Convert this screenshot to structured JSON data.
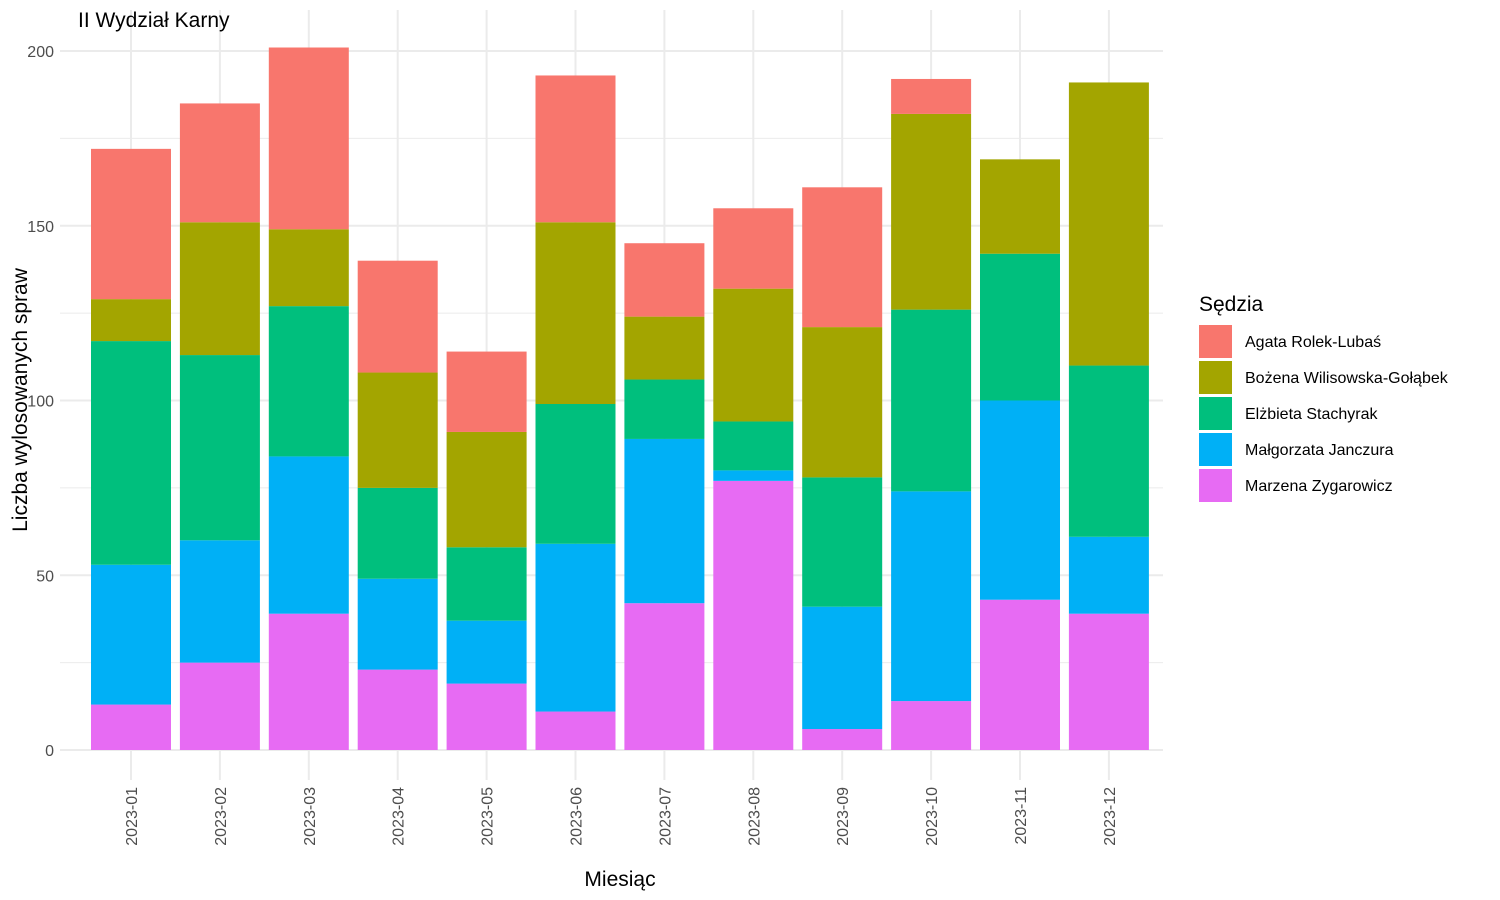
{
  "chart_data": {
    "type": "bar",
    "stacked": true,
    "title": "II Wydział Karny",
    "xlabel": "Miesiąc",
    "ylabel": "Liczba wylosowanych spraw",
    "ylim": [
      0,
      205
    ],
    "yticks": [
      0,
      50,
      100,
      150,
      200
    ],
    "grid": true,
    "legend_title": "Sędzia",
    "legend_position": "right",
    "categories": [
      "2023-01",
      "2023-02",
      "2023-03",
      "2023-04",
      "2023-05",
      "2023-06",
      "2023-07",
      "2023-08",
      "2023-09",
      "2023-10",
      "2023-11",
      "2023-12"
    ],
    "series": [
      {
        "name": "Marzena Zygarowicz",
        "color": "#E76BF3",
        "values": [
          13,
          25,
          39,
          23,
          19,
          11,
          42,
          77,
          6,
          14,
          43,
          39
        ]
      },
      {
        "name": "Małgorzata Janczura",
        "color": "#00B0F6",
        "values": [
          40,
          35,
          45,
          26,
          18,
          48,
          47,
          3,
          35,
          60,
          57,
          22
        ]
      },
      {
        "name": "Elżbieta Stachyrak",
        "color": "#00BF7D",
        "values": [
          64,
          53,
          43,
          26,
          21,
          40,
          17,
          14,
          37,
          52,
          42,
          49
        ]
      },
      {
        "name": "Bożena Wilisowska-Gołąbek",
        "color": "#A3A500",
        "values": [
          12,
          38,
          22,
          33,
          33,
          52,
          18,
          38,
          43,
          56,
          27,
          81
        ]
      },
      {
        "name": "Agata Rolek-Lubaś",
        "color": "#F8766D",
        "values": [
          43,
          34,
          52,
          32,
          23,
          42,
          21,
          23,
          40,
          10,
          0,
          0
        ]
      }
    ],
    "legend_order": [
      "Agata Rolek-Lubaś",
      "Bożena Wilisowska-Gołąbek",
      "Elżbieta Stachyrak",
      "Małgorzata Janczura",
      "Marzena Zygarowicz"
    ],
    "colors": {
      "grid": "#EBEBEB",
      "tick_text": "#4D4D4D",
      "background": "#FFFFFF"
    }
  }
}
